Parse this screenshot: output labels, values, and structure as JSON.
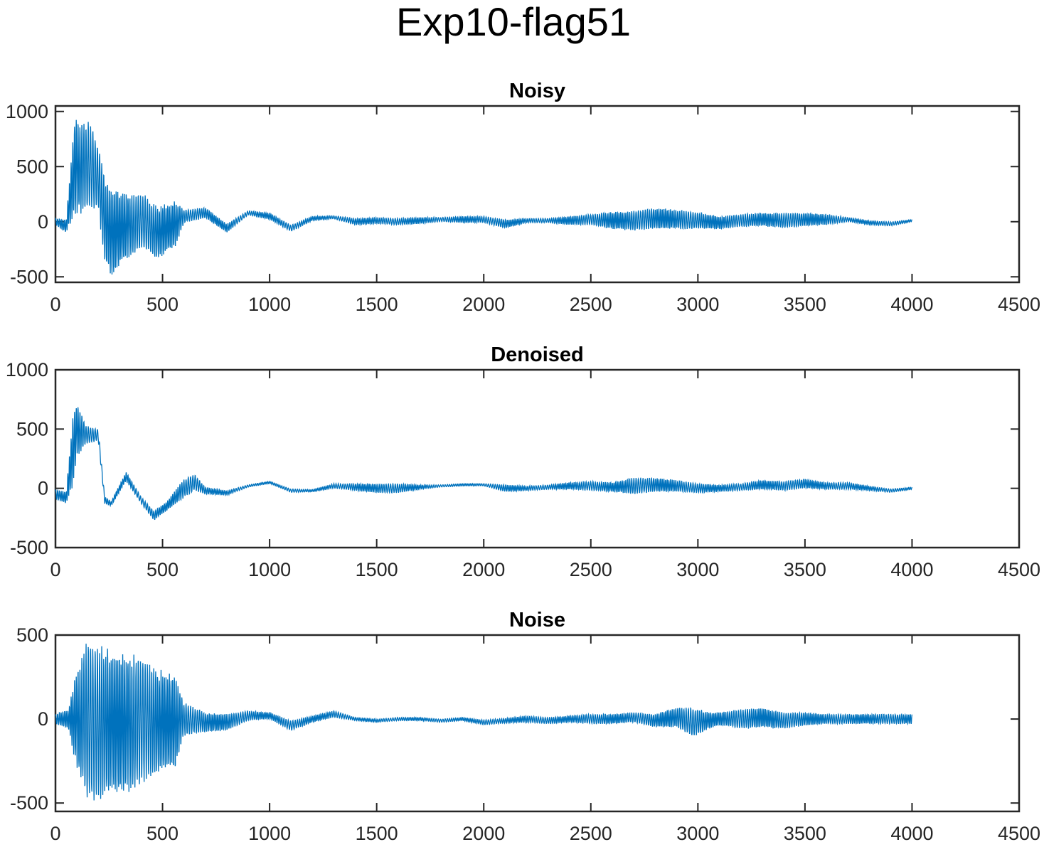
{
  "figure": {
    "title": "Exp10-flag51",
    "line_color": "#0072BD",
    "axis_color": "#262626"
  },
  "chart_data": [
    {
      "type": "line",
      "title": "Noisy",
      "xlim": [
        0,
        4500
      ],
      "ylim": [
        -550,
        1050
      ],
      "xticks": [
        0,
        500,
        1000,
        1500,
        2000,
        2500,
        3000,
        3500,
        4000,
        4500
      ],
      "yticks": [
        -500,
        0,
        500,
        1000
      ],
      "series": [
        {
          "color": "#0072BD",
          "samples": 4000,
          "envelope": {
            "x": [
              0,
              50,
              90,
              120,
              160,
              200,
              230,
              260,
              320,
              400,
              480,
              560,
              600,
              700,
              800,
              900,
              1000,
              1100,
              1200,
              1300,
              1400,
              1500,
              1600,
              1700,
              1800,
              1900,
              2000,
              2100,
              2200,
              2300,
              2400,
              2500,
              2600,
              2700,
              2800,
              2900,
              3000,
              3100,
              3200,
              3300,
              3400,
              3500,
              3600,
              3700,
              3800,
              3900,
              4000
            ],
            "center": [
              0,
              -40,
              500,
              500,
              500,
              400,
              0,
              -100,
              -50,
              0,
              -100,
              -20,
              50,
              80,
              -60,
              80,
              50,
              -60,
              30,
              40,
              0,
              10,
              0,
              10,
              20,
              20,
              20,
              -20,
              10,
              10,
              10,
              20,
              10,
              10,
              30,
              20,
              10,
              -10,
              10,
              20,
              10,
              20,
              20,
              20,
              -10,
              -20,
              10
            ],
            "amplitude": [
              30,
              60,
              450,
              420,
              400,
              300,
              420,
              400,
              320,
              260,
              240,
              220,
              60,
              50,
              40,
              20,
              30,
              30,
              20,
              15,
              30,
              30,
              30,
              30,
              20,
              30,
              30,
              40,
              20,
              20,
              40,
              50,
              80,
              90,
              100,
              90,
              80,
              60,
              60,
              60,
              70,
              60,
              50,
              20,
              20,
              20,
              10
            ]
          }
        }
      ]
    },
    {
      "type": "line",
      "title": "Denoised",
      "xlim": [
        0,
        4500
      ],
      "ylim": [
        -500,
        1000
      ],
      "xticks": [
        0,
        500,
        1000,
        1500,
        2000,
        2500,
        3000,
        3500,
        4000,
        4500
      ],
      "yticks": [
        -500,
        0,
        500,
        1000
      ],
      "series": [
        {
          "color": "#0072BD",
          "samples": 4000,
          "envelope": {
            "x": [
              0,
              50,
              80,
              100,
              140,
              200,
              230,
              260,
              330,
              400,
              460,
              520,
              600,
              650,
              700,
              800,
              900,
              1000,
              1100,
              1200,
              1300,
              1400,
              1500,
              1600,
              1700,
              1800,
              1900,
              2000,
              2100,
              2200,
              2300,
              2400,
              2500,
              2600,
              2700,
              2800,
              2900,
              3000,
              3100,
              3200,
              3300,
              3400,
              3500,
              3600,
              3700,
              3800,
              3900,
              4000
            ],
            "center": [
              -50,
              -80,
              300,
              500,
              450,
              450,
              -100,
              -130,
              100,
              -100,
              -230,
              -150,
              0,
              50,
              -20,
              -40,
              20,
              50,
              -20,
              -20,
              20,
              10,
              0,
              0,
              10,
              20,
              30,
              30,
              0,
              0,
              10,
              20,
              20,
              10,
              20,
              30,
              20,
              0,
              0,
              10,
              30,
              20,
              40,
              20,
              20,
              0,
              -20,
              0
            ],
            "amplitude": [
              40,
              50,
              300,
              250,
              80,
              50,
              30,
              20,
              40,
              30,
              40,
              40,
              80,
              70,
              30,
              20,
              10,
              10,
              15,
              10,
              20,
              30,
              40,
              40,
              20,
              10,
              10,
              10,
              30,
              20,
              20,
              30,
              40,
              40,
              70,
              60,
              50,
              40,
              30,
              30,
              40,
              40,
              40,
              30,
              30,
              20,
              15,
              10
            ]
          }
        }
      ]
    },
    {
      "type": "line",
      "title": "Noise",
      "xlim": [
        0,
        4500
      ],
      "ylim": [
        -550,
        500
      ],
      "xticks": [
        0,
        500,
        1000,
        1500,
        2000,
        2500,
        3000,
        3500,
        4000,
        4500
      ],
      "yticks": [
        -500,
        0,
        500
      ],
      "series": [
        {
          "color": "#0072BD",
          "samples": 4000,
          "envelope": {
            "x": [
              0,
              60,
              100,
              150,
              200,
              260,
              330,
              400,
              480,
              560,
              600,
              700,
              800,
              900,
              1000,
              1100,
              1200,
              1300,
              1400,
              1500,
              1600,
              1700,
              1800,
              1900,
              2000,
              2100,
              2200,
              2300,
              2400,
              2500,
              2600,
              2700,
              2800,
              2900,
              2980,
              3050,
              3100,
              3200,
              3300,
              3400,
              3500,
              3600,
              3700,
              3800,
              3900,
              4000
            ],
            "center": [
              0,
              0,
              0,
              -20,
              -20,
              -20,
              -30,
              -10,
              -20,
              -20,
              0,
              -20,
              -20,
              20,
              20,
              -40,
              0,
              30,
              0,
              -10,
              0,
              0,
              -10,
              0,
              -20,
              -10,
              0,
              -10,
              0,
              0,
              0,
              10,
              -10,
              10,
              -20,
              -10,
              0,
              0,
              10,
              -10,
              0,
              0,
              0,
              0,
              0,
              0
            ],
            "amplitude": [
              30,
              60,
              300,
              500,
              460,
              430,
              430,
              380,
              320,
              280,
              100,
              60,
              50,
              30,
              20,
              30,
              20,
              20,
              10,
              10,
              10,
              10,
              10,
              10,
              15,
              15,
              20,
              20,
              20,
              30,
              30,
              30,
              40,
              60,
              90,
              50,
              40,
              60,
              60,
              50,
              40,
              30,
              30,
              30,
              30,
              30
            ]
          }
        }
      ]
    }
  ]
}
